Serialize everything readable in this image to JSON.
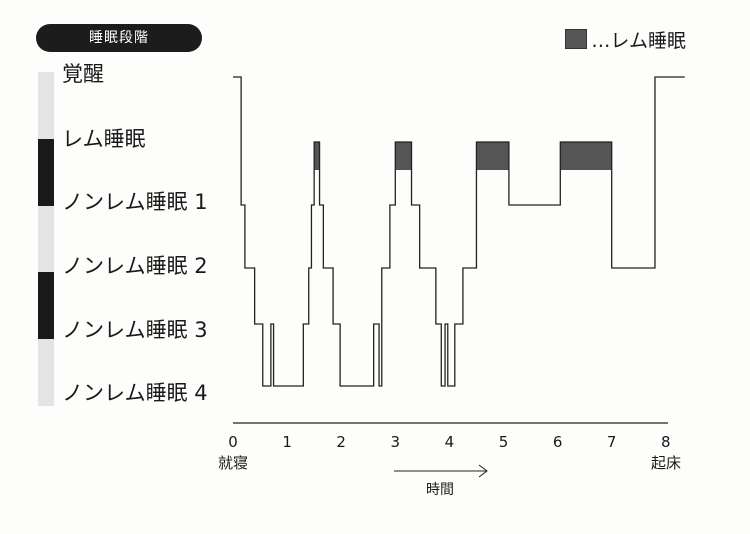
{
  "header": {
    "title": "睡眠段階"
  },
  "legend": {
    "label": "…レム睡眠",
    "swatch_color": "#555555"
  },
  "stage_bar_colors": [
    "#e4e4e4",
    "#1a1a1a",
    "#e4e4e4",
    "#1a1a1a",
    "#e4e4e4"
  ],
  "colors": {
    "line": "#222222",
    "rem_fill": "#555555"
  },
  "chart_data": {
    "type": "line",
    "title": "睡眠段階",
    "xlabel": "時間",
    "ylabel": "",
    "y_categories": [
      "覚醒",
      "レム睡眠",
      "ノンレム睡眠 1",
      "ノンレム睡眠 2",
      "ノンレム睡眠 3",
      "ノンレム睡眠 4"
    ],
    "x_ticks": [
      "0",
      "1",
      "2",
      "3",
      "4",
      "5",
      "6",
      "7",
      "8"
    ],
    "x_start_label": "就寝",
    "x_end_label": "起床",
    "xlim": [
      0,
      8
    ],
    "hypnogram": [
      {
        "x": 0.0,
        "stage": 0
      },
      {
        "x": 0.15,
        "stage": 2
      },
      {
        "x": 0.22,
        "stage": 3
      },
      {
        "x": 0.4,
        "stage": 4
      },
      {
        "x": 0.55,
        "stage": 5
      },
      {
        "x": 0.7,
        "stage": 4
      },
      {
        "x": 0.75,
        "stage": 5
      },
      {
        "x": 1.3,
        "stage": 4
      },
      {
        "x": 1.4,
        "stage": 3
      },
      {
        "x": 1.45,
        "stage": 2
      },
      {
        "x": 1.5,
        "stage": 1
      },
      {
        "x": 1.6,
        "stage": 2
      },
      {
        "x": 1.67,
        "stage": 3
      },
      {
        "x": 1.85,
        "stage": 4
      },
      {
        "x": 1.98,
        "stage": 5
      },
      {
        "x": 2.6,
        "stage": 4
      },
      {
        "x": 2.7,
        "stage": 5
      },
      {
        "x": 2.75,
        "stage": 3
      },
      {
        "x": 2.9,
        "stage": 2
      },
      {
        "x": 3.0,
        "stage": 1
      },
      {
        "x": 3.3,
        "stage": 2
      },
      {
        "x": 3.45,
        "stage": 3
      },
      {
        "x": 3.75,
        "stage": 4
      },
      {
        "x": 3.85,
        "stage": 5
      },
      {
        "x": 3.92,
        "stage": 4
      },
      {
        "x": 3.97,
        "stage": 5
      },
      {
        "x": 4.1,
        "stage": 4
      },
      {
        "x": 4.25,
        "stage": 3
      },
      {
        "x": 4.5,
        "stage": 1
      },
      {
        "x": 5.1,
        "stage": 2
      },
      {
        "x": 5.6,
        "stage": 2
      },
      {
        "x": 6.05,
        "stage": 1
      },
      {
        "x": 7.0,
        "stage": 3
      },
      {
        "x": 7.2,
        "stage": 3
      },
      {
        "x": 7.75,
        "stage": 3
      },
      {
        "x": 7.8,
        "stage": 0
      },
      {
        "x": 8.35,
        "stage": 0
      }
    ],
    "rem_periods": [
      [
        1.5,
        1.6
      ],
      [
        3.0,
        3.3
      ],
      [
        4.5,
        5.1
      ],
      [
        6.05,
        7.0
      ]
    ],
    "legend": [
      "…レム睡眠"
    ],
    "grid": false
  }
}
